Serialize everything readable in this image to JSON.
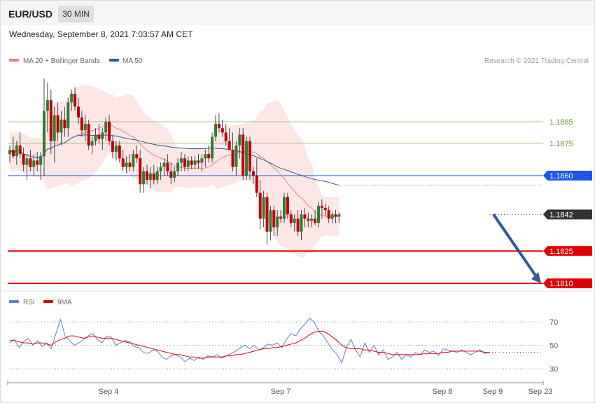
{
  "header": {
    "symbol": "EUR/USD",
    "timeframe": "30 MIN",
    "datetime": "Wednesday, September 8, 2021 7:03:57 AM CET"
  },
  "legend": {
    "ma20_label": "MA 20 + Bollinger Bands",
    "ma20_color": "#f08080",
    "ma50_label": "MA 50",
    "ma50_color": "#2e5c9a",
    "credit": "Research © 2021 Trading Central"
  },
  "rsi_legend": {
    "rsi_label": "RSI",
    "rsi_color": "#5b7fd6",
    "ma_label": "9MA",
    "ma_color": "#e00000"
  },
  "colors": {
    "bull": "#2e7d32",
    "bear": "#c00000",
    "band": "#fde3e3",
    "arrow": "#2f5b97"
  },
  "chart_data": [
    {
      "type": "candlestick",
      "x_labels": [
        "Sep 4",
        "Sep 7",
        "Sep 8",
        "Sep 9",
        "Sep 23"
      ],
      "ylim": [
        1.1805,
        1.191
      ],
      "levels": [
        {
          "label": "1.1885",
          "value": 1.1885,
          "style": "resistance",
          "color": "#7ab04a"
        },
        {
          "label": "1.1875",
          "value": 1.1875,
          "style": "resistance",
          "color": "#7ab04a"
        },
        {
          "label": "1.1860",
          "value": 1.186,
          "style": "pivot",
          "color": "#1a56e8"
        },
        {
          "label": "1.1842",
          "value": 1.1842,
          "style": "last",
          "color": "#333333"
        },
        {
          "label": "1.1825",
          "value": 1.1825,
          "style": "support",
          "color": "#e00000"
        },
        {
          "label": "1.1810",
          "value": 1.181,
          "style": "support",
          "color": "#e00000"
        }
      ],
      "ohlc": [
        [
          1.187,
          1.1874,
          1.1866,
          1.1872
        ],
        [
          1.1872,
          1.1878,
          1.1868,
          1.1869
        ],
        [
          1.1869,
          1.1876,
          1.1865,
          1.1874
        ],
        [
          1.1874,
          1.188,
          1.1868,
          1.187
        ],
        [
          1.187,
          1.1873,
          1.1862,
          1.1865
        ],
        [
          1.1865,
          1.187,
          1.1858,
          1.1868
        ],
        [
          1.1868,
          1.1872,
          1.1862,
          1.1864
        ],
        [
          1.1864,
          1.187,
          1.186,
          1.1867
        ],
        [
          1.1867,
          1.1871,
          1.1862,
          1.1865
        ],
        [
          1.1865,
          1.1871,
          1.1858,
          1.1869
        ],
        [
          1.1869,
          1.1905,
          1.186,
          1.189
        ],
        [
          1.189,
          1.1903,
          1.188,
          1.1895
        ],
        [
          1.1895,
          1.19,
          1.187,
          1.1876
        ],
        [
          1.1876,
          1.1892,
          1.1866,
          1.1888
        ],
        [
          1.1888,
          1.1894,
          1.1876,
          1.188
        ],
        [
          1.188,
          1.189,
          1.1874,
          1.1886
        ],
        [
          1.1886,
          1.1892,
          1.1878,
          1.1882
        ],
        [
          1.1882,
          1.1896,
          1.1878,
          1.1894
        ],
        [
          1.1894,
          1.19,
          1.189,
          1.1898
        ],
        [
          1.1898,
          1.1901,
          1.189,
          1.1892
        ],
        [
          1.1892,
          1.1896,
          1.1884,
          1.1887
        ],
        [
          1.1887,
          1.189,
          1.1878,
          1.1881
        ],
        [
          1.1881,
          1.1888,
          1.1876,
          1.1884
        ],
        [
          1.1884,
          1.1886,
          1.1872,
          1.1874
        ],
        [
          1.1874,
          1.1878,
          1.187,
          1.1876
        ],
        [
          1.1876,
          1.1882,
          1.1874,
          1.1879
        ],
        [
          1.1879,
          1.1884,
          1.1875,
          1.1877
        ],
        [
          1.1877,
          1.1882,
          1.1872,
          1.188
        ],
        [
          1.188,
          1.1887,
          1.1876,
          1.1885
        ],
        [
          1.1885,
          1.1888,
          1.1874,
          1.1876
        ],
        [
          1.1876,
          1.1879,
          1.1868,
          1.1871
        ],
        [
          1.1871,
          1.1876,
          1.1867,
          1.1874
        ],
        [
          1.1874,
          1.1876,
          1.1866,
          1.1868
        ],
        [
          1.1868,
          1.1872,
          1.1862,
          1.1864
        ],
        [
          1.1864,
          1.1869,
          1.1861,
          1.1866
        ],
        [
          1.1866,
          1.187,
          1.1862,
          1.1864
        ],
        [
          1.1864,
          1.1872,
          1.1862,
          1.187
        ],
        [
          1.187,
          1.1874,
          1.1866,
          1.1868
        ],
        [
          1.1868,
          1.1872,
          1.1852,
          1.1856
        ],
        [
          1.1856,
          1.1864,
          1.1852,
          1.1862
        ],
        [
          1.1862,
          1.1865,
          1.1856,
          1.1858
        ],
        [
          1.1858,
          1.1864,
          1.1854,
          1.1861
        ],
        [
          1.1861,
          1.1865,
          1.1856,
          1.1858
        ],
        [
          1.1858,
          1.1864,
          1.1856,
          1.1862
        ],
        [
          1.1862,
          1.1866,
          1.1858,
          1.1864
        ],
        [
          1.1864,
          1.1868,
          1.186,
          1.1866
        ],
        [
          1.1866,
          1.187,
          1.186,
          1.1862
        ],
        [
          1.1862,
          1.1866,
          1.1856,
          1.1859
        ],
        [
          1.1859,
          1.1864,
          1.1857,
          1.1862
        ],
        [
          1.1862,
          1.1868,
          1.186,
          1.1866
        ],
        [
          1.1866,
          1.1871,
          1.1862,
          1.1868
        ],
        [
          1.1868,
          1.187,
          1.1862,
          1.1864
        ],
        [
          1.1864,
          1.1869,
          1.1862,
          1.1867
        ],
        [
          1.1867,
          1.1869,
          1.1863,
          1.1865
        ],
        [
          1.1865,
          1.1869,
          1.1863,
          1.1867
        ],
        [
          1.1867,
          1.187,
          1.1863,
          1.1866
        ],
        [
          1.1866,
          1.187,
          1.1862,
          1.1868
        ],
        [
          1.1868,
          1.1872,
          1.1864,
          1.187
        ],
        [
          1.187,
          1.1874,
          1.1866,
          1.1868
        ],
        [
          1.1868,
          1.188,
          1.1866,
          1.1878
        ],
        [
          1.1878,
          1.1888,
          1.1876,
          1.1884
        ],
        [
          1.1884,
          1.1889,
          1.188,
          1.1882
        ],
        [
          1.1882,
          1.1886,
          1.1878,
          1.188
        ],
        [
          1.188,
          1.1884,
          1.1874,
          1.1876
        ],
        [
          1.1876,
          1.1882,
          1.1872,
          1.1872
        ],
        [
          1.1872,
          1.188,
          1.1862,
          1.1864
        ],
        [
          1.1864,
          1.1876,
          1.186,
          1.1874
        ],
        [
          1.1874,
          1.1882,
          1.1868,
          1.1879
        ],
        [
          1.1879,
          1.1882,
          1.1858,
          1.186
        ],
        [
          1.186,
          1.1878,
          1.1858,
          1.1876
        ],
        [
          1.1876,
          1.1878,
          1.1858,
          1.1862
        ],
        [
          1.1862,
          1.1864,
          1.1856,
          1.186
        ],
        [
          1.186,
          1.1868,
          1.185,
          1.1852
        ],
        [
          1.1852,
          1.1858,
          1.1835,
          1.184
        ],
        [
          1.184,
          1.1853,
          1.1836,
          1.185
        ],
        [
          1.185,
          1.1852,
          1.1828,
          1.1834
        ],
        [
          1.1834,
          1.1846,
          1.183,
          1.1844
        ],
        [
          1.1844,
          1.1846,
          1.1832,
          1.1836
        ],
        [
          1.1836,
          1.1844,
          1.1832,
          1.1841
        ],
        [
          1.1841,
          1.1844,
          1.1838,
          1.184
        ],
        [
          1.184,
          1.1852,
          1.1838,
          1.185
        ],
        [
          1.185,
          1.1852,
          1.184,
          1.1842
        ],
        [
          1.1842,
          1.1844,
          1.1836,
          1.1838
        ],
        [
          1.1838,
          1.1842,
          1.1834,
          1.184
        ],
        [
          1.184,
          1.1844,
          1.1832,
          1.1834
        ],
        [
          1.1834,
          1.1844,
          1.183,
          1.1842
        ],
        [
          1.1842,
          1.1845,
          1.1836,
          1.184
        ],
        [
          1.184,
          1.1843,
          1.1836,
          1.1839
        ],
        [
          1.1839,
          1.1842,
          1.1836,
          1.184
        ],
        [
          1.184,
          1.1844,
          1.1837,
          1.1838
        ],
        [
          1.1838,
          1.1848,
          1.1836,
          1.1846
        ],
        [
          1.1846,
          1.1849,
          1.184,
          1.1845
        ],
        [
          1.1845,
          1.1847,
          1.1841,
          1.1844
        ],
        [
          1.1844,
          1.1846,
          1.1838,
          1.184
        ],
        [
          1.184,
          1.1843,
          1.1838,
          1.1842
        ],
        [
          1.1842,
          1.1844,
          1.1838,
          1.1841
        ],
        [
          1.1841,
          1.1843,
          1.1838,
          1.1842
        ]
      ],
      "projection": {
        "from": 1.1842,
        "to": 1.181
      }
    },
    {
      "type": "line",
      "name": "RSI",
      "y_ticks": [
        "70",
        "50",
        "30"
      ],
      "ylim": [
        20,
        80
      ],
      "rsi": [
        52,
        55,
        48,
        53,
        56,
        50,
        54,
        49,
        52,
        47,
        60,
        72,
        58,
        54,
        50,
        52,
        55,
        58,
        60,
        55,
        52,
        58,
        57,
        50,
        52,
        54,
        53,
        49,
        48,
        44,
        43,
        46,
        45,
        40,
        38,
        41,
        42,
        40,
        36,
        39,
        37,
        40,
        38,
        41,
        40,
        42,
        39,
        41,
        43,
        45,
        48,
        50,
        47,
        50,
        46,
        48,
        51,
        50,
        52,
        48,
        55,
        60,
        58,
        64,
        68,
        73,
        70,
        62,
        58,
        52,
        46,
        42,
        35,
        48,
        55,
        46,
        40,
        52,
        44,
        50,
        42,
        46,
        38,
        40,
        44,
        38,
        42,
        40,
        44,
        42,
        46,
        44,
        45,
        41,
        47,
        46,
        45,
        44,
        46,
        44,
        42,
        44,
        46,
        43,
        44
      ],
      "ma9": [
        54,
        54,
        53,
        52,
        52,
        51,
        52,
        52,
        51,
        50,
        53,
        55,
        56,
        58,
        58,
        57,
        56,
        57,
        58,
        57,
        56,
        56,
        56,
        55,
        54,
        53,
        52,
        51,
        50,
        49,
        48,
        47,
        46,
        45,
        44,
        43,
        42,
        42,
        41,
        40,
        40,
        39,
        39,
        40,
        40,
        40,
        40,
        41,
        41,
        42,
        42,
        43,
        44,
        45,
        46,
        47,
        47,
        48,
        48,
        49,
        50,
        51,
        52,
        54,
        56,
        59,
        61,
        62,
        62,
        60,
        57,
        54,
        50,
        48,
        47,
        47,
        47,
        46,
        46,
        45,
        44,
        44,
        43,
        42,
        42,
        42,
        42,
        42,
        42,
        42,
        43,
        43,
        43,
        43,
        44,
        44,
        45,
        45,
        45,
        45,
        45,
        45,
        45,
        44,
        44
      ]
    }
  ]
}
